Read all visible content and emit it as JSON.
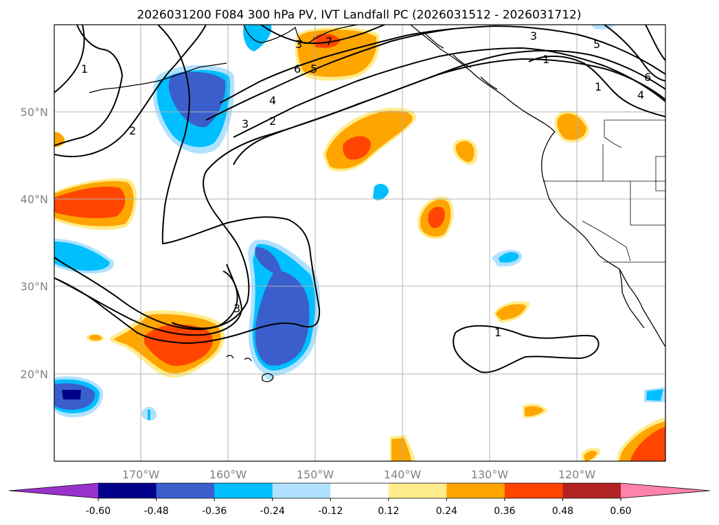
{
  "title": "2026031200 F084 300 hPa PV, IVT Landfall PC (2026031512 - 2026031712)",
  "lat_labels": [
    "50°N",
    "40°N",
    "30°N",
    "20°N"
  ],
  "lon_labels": [
    "170°W",
    "160°W",
    "150°W",
    "140°W",
    "130°W",
    "120°W"
  ],
  "colorbar": {
    "ticks": [
      "-0.60",
      "-0.48",
      "-0.36",
      "-0.24",
      "-0.12",
      "0.12",
      "0.24",
      "0.36",
      "0.48",
      "0.60"
    ],
    "colors": [
      "#9932cc",
      "#00008b",
      "#3a5fcd",
      "#00bfff",
      "#b0e2ff",
      "#ffffff",
      "#ffec8b",
      "#ffa500",
      "#ff4500",
      "#b22222",
      "#ff82ab"
    ]
  },
  "contour_labels": [
    "1",
    "2",
    "3",
    "2",
    "3",
    "4",
    "5",
    "6",
    "7",
    "3",
    "5",
    "6",
    "4",
    "1",
    "3",
    "1",
    "1"
  ]
}
